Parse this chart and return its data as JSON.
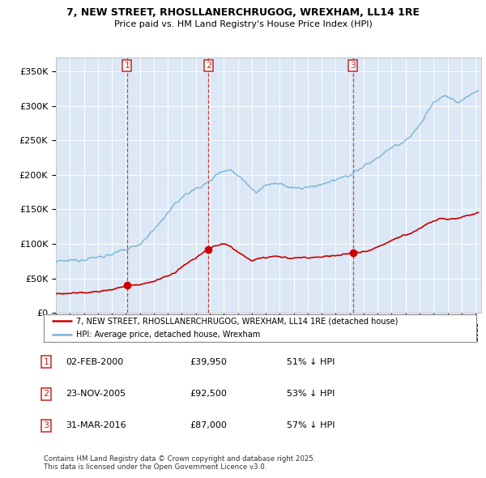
{
  "title": "7, NEW STREET, RHOSLLANERCHRUGOG, WREXHAM, LL14 1RE",
  "subtitle": "Price paid vs. HM Land Registry's House Price Index (HPI)",
  "ylim": [
    0,
    370000
  ],
  "yticks": [
    0,
    50000,
    100000,
    150000,
    200000,
    250000,
    300000,
    350000
  ],
  "ytick_labels": [
    "£0",
    "£50K",
    "£100K",
    "£150K",
    "£200K",
    "£250K",
    "£300K",
    "£350K"
  ],
  "hpi_color": "#7ab4d8",
  "price_color": "#cc0000",
  "vline_color": "#cc2222",
  "transactions": [
    {
      "date_num": 2000.09,
      "price": 39950,
      "label": "1"
    },
    {
      "date_num": 2005.9,
      "price": 92500,
      "label": "2"
    },
    {
      "date_num": 2016.25,
      "price": 87000,
      "label": "3"
    }
  ],
  "legend_entries": [
    "7, NEW STREET, RHOSLLANERCHRUGOG, WREXHAM, LL14 1RE (detached house)",
    "HPI: Average price, detached house, Wrexham"
  ],
  "table_rows": [
    {
      "num": "1",
      "date": "02-FEB-2000",
      "price": "£39,950",
      "pct": "51% ↓ HPI"
    },
    {
      "num": "2",
      "date": "23-NOV-2005",
      "price": "£92,500",
      "pct": "53% ↓ HPI"
    },
    {
      "num": "3",
      "date": "31-MAR-2016",
      "price": "£87,000",
      "pct": "57% ↓ HPI"
    }
  ],
  "footnote": "Contains HM Land Registry data © Crown copyright and database right 2025.\nThis data is licensed under the Open Government Licence v3.0.",
  "background_color": "#ffffff",
  "plot_bg_color": "#dce8f5"
}
